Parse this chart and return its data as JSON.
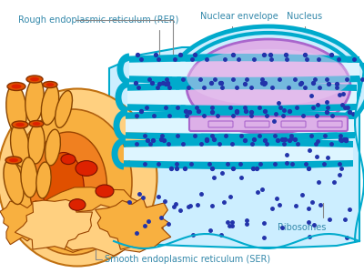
{
  "background_color": "#ffffff",
  "labels": {
    "RER": "Rough endoplasmic reticulum (RER)",
    "nuclear_envelope": "Nuclear envelope",
    "nucleus": "Nucleus",
    "ribosomes": "Ribosomes",
    "SER": "Smooth endoplasmic reticulum (SER)"
  },
  "label_color": "#3388aa",
  "label_fontsize": 7.0,
  "colors": {
    "cytoplasm_light": "#cceeff",
    "cytoplasm_mid": "#aaddf0",
    "rer_membrane": "#00aacc",
    "rer_lumen": "#ddf5ff",
    "nucleus_fill": "#ddb0e8",
    "nucleus_top": "#cc99dd",
    "nucleus_outline": "#aa66cc",
    "ribosome": "#2233aa",
    "ser_outer": "#f8b040",
    "ser_orange": "#f08020",
    "ser_deep": "#e05000",
    "ser_red": "#dd2200",
    "ser_light": "#ffd080",
    "annotation_line": "#888888"
  }
}
